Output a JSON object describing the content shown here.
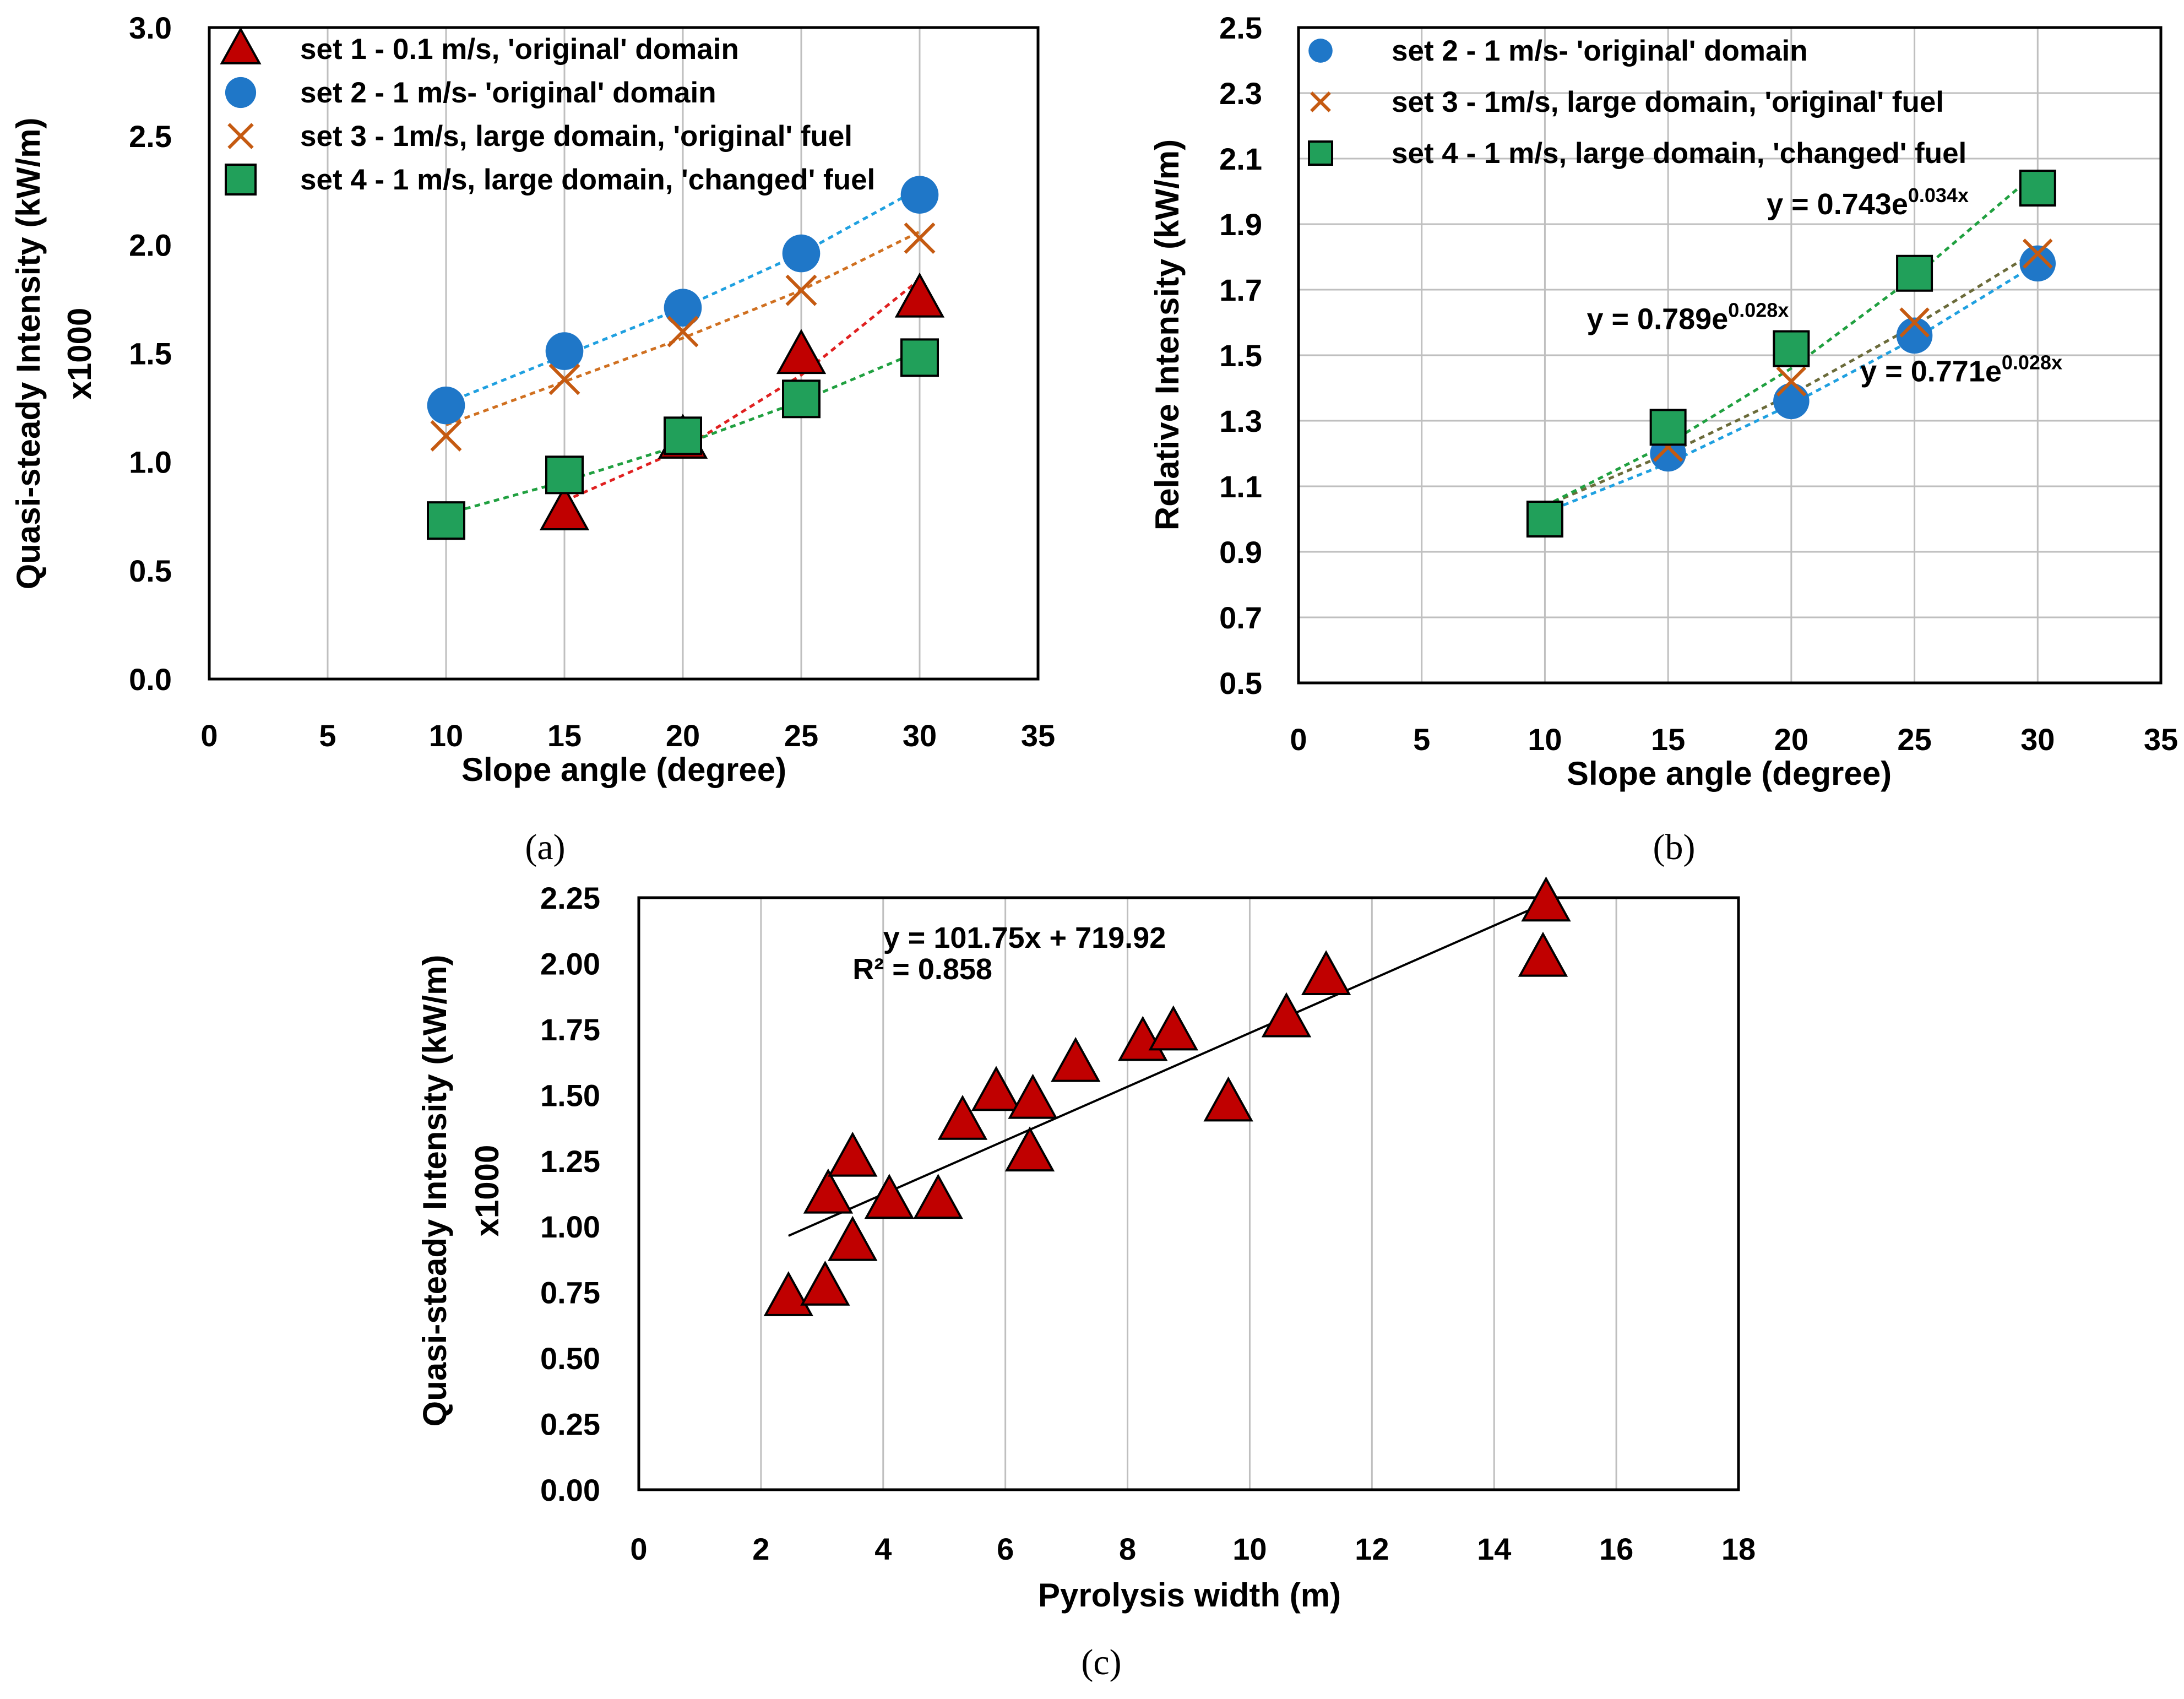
{
  "chart_data": [
    {
      "id": "a",
      "type": "scatter",
      "caption": "(a)",
      "xlabel": "Slope angle (degree)",
      "ylabel": "Quasi-steady Intensity (kW/m)",
      "ylabel2": "x1000",
      "xlim": [
        0,
        35
      ],
      "ylim": [
        0,
        3.0
      ],
      "xticks": [
        0,
        5,
        10,
        15,
        20,
        25,
        30,
        35
      ],
      "yticks": [
        0.0,
        0.5,
        1.0,
        1.5,
        2.0,
        2.5,
        3.0
      ],
      "ytick_decimals": 1,
      "grid": "vertical",
      "legend_position": "top",
      "series": [
        {
          "name": "set 1 - 0.1 m/s, 'original' domain",
          "marker": "triangle",
          "color": "#c00000",
          "trend_color": "#e02020",
          "x": [
            15,
            20,
            25,
            30
          ],
          "y": [
            0.77,
            1.1,
            1.49,
            1.75
          ],
          "trend": [
            [
              15,
              0.82
            ],
            [
              20,
              1.06
            ],
            [
              25,
              1.4
            ],
            [
              30,
              1.84
            ]
          ]
        },
        {
          "name": "set 2 - 1 m/s- 'original' domain",
          "marker": "circle",
          "color": "#1f77c8",
          "trend_color": "#1fa0e0",
          "x": [
            10,
            15,
            20,
            25,
            30
          ],
          "y": [
            1.26,
            1.51,
            1.71,
            1.96,
            2.23
          ],
          "trend": [
            [
              10,
              1.27
            ],
            [
              15,
              1.49
            ],
            [
              20,
              1.71
            ],
            [
              25,
              1.96
            ],
            [
              30,
              2.26
            ]
          ]
        },
        {
          "name": "set 3 - 1m/s, large domain, 'original' fuel",
          "marker": "x",
          "color": "#c55a11",
          "trend_color": "#d07020",
          "x": [
            10,
            15,
            20,
            25,
            30
          ],
          "y": [
            1.12,
            1.38,
            1.6,
            1.79,
            2.03
          ],
          "trend": [
            [
              10,
              1.17
            ],
            [
              15,
              1.37
            ],
            [
              20,
              1.57
            ],
            [
              25,
              1.79
            ],
            [
              30,
              2.06
            ]
          ]
        },
        {
          "name": "set 4 - 1 m/s, large domain, 'changed' fuel",
          "marker": "square",
          "color": "#21a05a",
          "trend_color": "#20a040",
          "x": [
            10,
            15,
            20,
            25,
            30
          ],
          "y": [
            0.73,
            0.94,
            1.12,
            1.29,
            1.48
          ],
          "trend": [
            [
              10,
              0.76
            ],
            [
              15,
              0.91
            ],
            [
              20,
              1.08
            ],
            [
              25,
              1.28
            ],
            [
              30,
              1.51
            ]
          ]
        }
      ]
    },
    {
      "id": "b",
      "type": "scatter",
      "caption": "(b)",
      "xlabel": "Slope angle (degree)",
      "ylabel": "Relative Intensity (kW/m)",
      "xlim": [
        0,
        35
      ],
      "ylim": [
        0.5,
        2.5
      ],
      "xticks": [
        0,
        5,
        10,
        15,
        20,
        25,
        30,
        35
      ],
      "yticks": [
        0.5,
        0.7,
        0.9,
        1.1,
        1.3,
        1.5,
        1.7,
        1.9,
        2.1,
        2.3,
        2.5
      ],
      "ytick_decimals": 1,
      "grid": "both",
      "legend_position": "top",
      "annotations": [
        {
          "base": "y = 0.743e",
          "exp": "0.034x",
          "x": 19,
          "y": 1.93
        },
        {
          "base": "y = 0.789e",
          "exp": "0.028x",
          "x": 11.7,
          "y": 1.58
        },
        {
          "base": "y = 0.771e",
          "exp": "0.028x",
          "x": 22.8,
          "y": 1.42
        }
      ],
      "series": [
        {
          "name": "set 2 - 1 m/s- 'original' domain",
          "marker": "circle",
          "color": "#1f77c8",
          "trend_color": "#1fa0e0",
          "x": [
            10,
            15,
            20,
            25,
            30
          ],
          "y": [
            1.0,
            1.2,
            1.36,
            1.56,
            1.78
          ],
          "trend": [
            [
              10,
              1.02
            ],
            [
              15,
              1.17
            ],
            [
              20,
              1.35
            ],
            [
              25,
              1.55
            ],
            [
              30,
              1.78
            ]
          ]
        },
        {
          "name": "set 3 - 1m/s, large domain, 'original' fuel",
          "marker": "x",
          "color": "#c55a11",
          "trend_color": "#6b6b3a",
          "x": [
            10,
            15,
            20,
            25,
            30
          ],
          "y": [
            1.0,
            1.22,
            1.42,
            1.6,
            1.81
          ],
          "trend": [
            [
              10,
              1.04
            ],
            [
              15,
              1.2
            ],
            [
              20,
              1.38
            ],
            [
              25,
              1.59
            ],
            [
              30,
              1.82
            ]
          ]
        },
        {
          "name": "set 4 - 1 m/s, large domain, 'changed' fuel",
          "marker": "square",
          "color": "#21a05a",
          "trend_color": "#20a040",
          "x": [
            10,
            15,
            20,
            25,
            30
          ],
          "y": [
            1.0,
            1.28,
            1.52,
            1.75,
            2.01
          ],
          "trend": [
            [
              10,
              1.04
            ],
            [
              15,
              1.23
            ],
            [
              20,
              1.46
            ],
            [
              25,
              1.74
            ],
            [
              30,
              2.06
            ]
          ]
        }
      ]
    },
    {
      "id": "c",
      "type": "scatter",
      "caption": "(c)",
      "xlabel": "Pyrolysis width (m)",
      "ylabel": "Quasi-steady Intensity (kW/m)",
      "ylabel2": "x1000",
      "xlim": [
        0,
        18
      ],
      "ylim": [
        0,
        2.25
      ],
      "xticks": [
        0,
        2,
        4,
        6,
        8,
        10,
        12,
        14,
        16,
        18
      ],
      "yticks": [
        0.0,
        0.25,
        0.5,
        0.75,
        1.0,
        1.25,
        1.5,
        1.75,
        2.0,
        2.25
      ],
      "ytick_decimals": 2,
      "grid": "vertical",
      "annotations": [
        {
          "base": "y = 101.75x + 719.92",
          "exp": "",
          "x": 4.0,
          "y": 2.06
        },
        {
          "base": "R² = 0.858",
          "exp": "",
          "x": 3.5,
          "y": 1.94
        }
      ],
      "series": [
        {
          "name": "",
          "marker": "triangle",
          "color": "#c00000",
          "x": [
            2.45,
            3.05,
            3.1,
            3.5,
            3.5,
            4.1,
            4.9,
            5.3,
            5.85,
            6.4,
            6.45,
            7.15,
            8.25,
            8.75,
            9.65,
            10.6,
            11.25,
            14.8,
            14.85
          ],
          "y": [
            0.73,
            0.77,
            1.12,
            0.94,
            1.26,
            1.1,
            1.1,
            1.4,
            1.51,
            1.28,
            1.48,
            1.62,
            1.7,
            1.74,
            1.47,
            1.79,
            1.95,
            2.02,
            2.23
          ],
          "trend": [
            [
              2.45,
              0.965
            ],
            [
              14.9,
              2.236
            ]
          ],
          "trend_color": "#000000"
        }
      ]
    }
  ]
}
